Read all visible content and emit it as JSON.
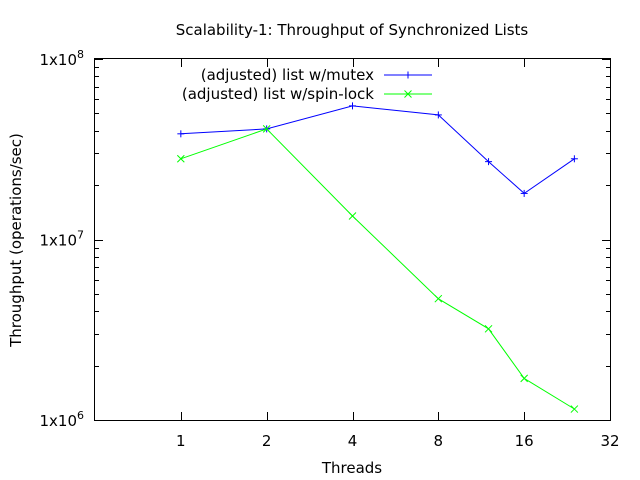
{
  "chart_data": {
    "type": "line",
    "title": "Scalability-1: Throughput of Synchronized Lists",
    "xlabel": "Threads",
    "ylabel": "Throughput (operations/sec)",
    "x_scale": "log2",
    "y_scale": "log10",
    "xlim": [
      0.5,
      32
    ],
    "ylim": [
      1000000,
      100000000
    ],
    "x_ticks": [
      {
        "value": 1,
        "label": "1"
      },
      {
        "value": 2,
        "label": "2"
      },
      {
        "value": 4,
        "label": "4"
      },
      {
        "value": 8,
        "label": "8"
      },
      {
        "value": 16,
        "label": "16"
      },
      {
        "value": 32,
        "label": "32"
      }
    ],
    "y_ticks": [
      {
        "value": 1000000,
        "base": "1x10",
        "exp": "6"
      },
      {
        "value": 10000000,
        "base": "1x10",
        "exp": "7"
      },
      {
        "value": 100000000,
        "base": "1x10",
        "exp": "8"
      }
    ],
    "grid": false,
    "legend_position": "top-center",
    "series": [
      {
        "name": "(adjusted) list w/mutex",
        "color": "#0000ff",
        "marker": "plus",
        "points": [
          {
            "x": 1,
            "y": 38500000
          },
          {
            "x": 2,
            "y": 41000000
          },
          {
            "x": 4,
            "y": 55000000
          },
          {
            "x": 8,
            "y": 49000000
          },
          {
            "x": 12,
            "y": 27000000
          },
          {
            "x": 16,
            "y": 18000000
          },
          {
            "x": 24,
            "y": 28000000
          }
        ]
      },
      {
        "name": "(adjusted) list w/spin-lock",
        "color": "#00ff00",
        "marker": "cross",
        "points": [
          {
            "x": 1,
            "y": 28000000
          },
          {
            "x": 2,
            "y": 41000000
          },
          {
            "x": 4,
            "y": 13500000
          },
          {
            "x": 8,
            "y": 4700000
          },
          {
            "x": 12,
            "y": 3200000
          },
          {
            "x": 16,
            "y": 1700000
          },
          {
            "x": 24,
            "y": 1150000
          }
        ]
      }
    ]
  }
}
